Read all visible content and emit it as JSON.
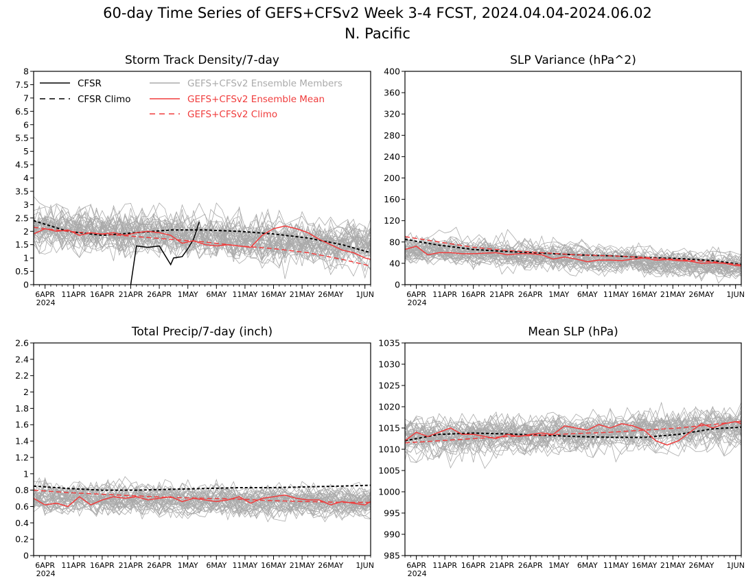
{
  "figure": {
    "title_line1": "60-day Time Series of GEFS+CFSv2 Week 3-4 FCST, 2024.04.04-2024.06.02",
    "title_line2": "N. Pacific"
  },
  "colors": {
    "cfsr": "#000000",
    "ensemble_members": "#aaaaaa",
    "ensemble_mean": "#f03c3c",
    "axes": "#000000"
  },
  "legend": {
    "placement": "top-left of panel 1",
    "items": [
      {
        "label": "CFSR",
        "style": "solid",
        "color": "#000000"
      },
      {
        "label": "CFSR Climo",
        "style": "dashed",
        "color": "#000000"
      },
      {
        "label": "GEFS+CFSv2 Ensemble Members",
        "style": "solid",
        "color": "#aaaaaa"
      },
      {
        "label": "GEFS+CFSv2 Ensemble Mean",
        "style": "solid",
        "color": "#f03c3c"
      },
      {
        "label": "GEFS+CFSv2 Climo",
        "style": "dashed",
        "color": "#f03c3c"
      }
    ]
  },
  "x_axis": {
    "day_range": [
      4,
      63
    ],
    "tick_days": [
      6,
      11,
      16,
      21,
      26,
      31,
      36,
      41,
      46,
      51,
      56,
      62
    ],
    "tick_labels": [
      "6APR",
      "11APR",
      "16APR",
      "21APR",
      "26APR",
      "1MAY",
      "6MAY",
      "11MAY",
      "16MAY",
      "21MAY",
      "26MAY",
      "1JUN"
    ],
    "year_label": "2024"
  },
  "chart_data": [
    {
      "type": "line",
      "title": "Storm Track Density/7-day",
      "ylim": [
        0,
        8
      ],
      "yticks": [
        0,
        0.5,
        1,
        1.5,
        2,
        2.5,
        3,
        3.5,
        4,
        4.5,
        5,
        5.5,
        6,
        6.5,
        7,
        7.5,
        8
      ],
      "ytick_labels": [
        "0",
        "0.5",
        "1",
        "1.5",
        "2",
        "2.5",
        "3",
        "3.5",
        "4",
        "4.5",
        "5",
        "5.5",
        "6",
        "6.5",
        "7",
        "7.5",
        "8"
      ],
      "members": {
        "count": 40,
        "center_start": 2.1,
        "center_end": 1.4,
        "spread": 1.0
      },
      "series": [
        {
          "name": "CFSR",
          "x": [
            21,
            22,
            24,
            26,
            27,
            28,
            28.5,
            30,
            31,
            32,
            33
          ],
          "values": [
            0,
            1.45,
            1.4,
            1.45,
            1.1,
            0.75,
            1.0,
            1.05,
            1.35,
            1.7,
            2.35
          ]
        },
        {
          "name": "CFSR Climo",
          "x": [
            4,
            10,
            16,
            22,
            28,
            34,
            40,
            46,
            52,
            58,
            63
          ],
          "values": [
            2.4,
            2.0,
            1.85,
            1.95,
            2.05,
            2.05,
            2.0,
            1.9,
            1.75,
            1.5,
            1.2
          ]
        },
        {
          "name": "GEFS+CFSv2 Ensemble Mean",
          "x": [
            4,
            6,
            8,
            10,
            12,
            14,
            16,
            18,
            20,
            22,
            24,
            26,
            28,
            30,
            32,
            34,
            36,
            38,
            40,
            42,
            44,
            46,
            48,
            50,
            52,
            54,
            56,
            58,
            60,
            62,
            63
          ],
          "values": [
            1.9,
            2.1,
            2.0,
            2.05,
            1.85,
            1.95,
            1.9,
            1.95,
            1.85,
            1.95,
            2.0,
            1.95,
            1.85,
            1.55,
            1.65,
            1.5,
            1.45,
            1.5,
            1.45,
            1.4,
            1.85,
            2.1,
            2.2,
            2.1,
            1.95,
            1.7,
            1.5,
            1.3,
            1.2,
            1.0,
            0.95
          ]
        },
        {
          "name": "GEFS+CFSv2 Climo",
          "x": [
            4,
            10,
            16,
            22,
            28,
            34,
            40,
            46,
            52,
            58,
            63
          ],
          "values": [
            2.15,
            2.0,
            1.9,
            1.8,
            1.7,
            1.6,
            1.45,
            1.35,
            1.2,
            0.95,
            0.7
          ]
        }
      ]
    },
    {
      "type": "line",
      "title": "SLP Variance (hPa^2)",
      "ylim": [
        0,
        400
      ],
      "yticks": [
        0,
        40,
        80,
        120,
        160,
        200,
        240,
        280,
        320,
        360,
        400
      ],
      "ytick_labels": [
        "0",
        "40",
        "80",
        "120",
        "160",
        "200",
        "240",
        "280",
        "320",
        "360",
        "400"
      ],
      "members": {
        "count": 40,
        "center_start": 68,
        "center_end": 35,
        "spread": 28
      },
      "series": [
        {
          "name": "CFSR Climo",
          "x": [
            4,
            10,
            16,
            22,
            28,
            34,
            40,
            46,
            52,
            58,
            63
          ],
          "values": [
            85,
            74,
            66,
            62,
            59,
            56,
            54,
            51,
            49,
            45,
            38
          ]
        },
        {
          "name": "GEFS+CFSv2 Ensemble Mean",
          "x": [
            4,
            6,
            8,
            10,
            12,
            14,
            16,
            18,
            20,
            22,
            24,
            26,
            28,
            30,
            32,
            34,
            36,
            38,
            40,
            42,
            44,
            46,
            48,
            50,
            52,
            54,
            56,
            58,
            60,
            62,
            63
          ],
          "values": [
            66,
            72,
            56,
            60,
            60,
            58,
            58,
            59,
            60,
            56,
            58,
            58,
            56,
            48,
            52,
            48,
            43,
            46,
            46,
            45,
            48,
            50,
            46,
            47,
            45,
            44,
            40,
            41,
            40,
            36,
            35
          ]
        },
        {
          "name": "GEFS+CFSv2 Climo",
          "x": [
            4,
            10,
            16,
            22,
            28,
            34,
            40,
            46,
            52,
            58,
            63
          ],
          "values": [
            90,
            80,
            70,
            64,
            60,
            56,
            54,
            51,
            47,
            43,
            37
          ]
        }
      ]
    },
    {
      "type": "line",
      "title": "Total Precip/7-day (inch)",
      "ylim": [
        0,
        2.6
      ],
      "yticks": [
        0,
        0.2,
        0.4,
        0.6,
        0.8,
        1,
        1.2,
        1.4,
        1.6,
        1.8,
        2,
        2.2,
        2.4,
        2.6
      ],
      "ytick_labels": [
        "0",
        "0.2",
        "0.4",
        "0.6",
        "0.8",
        "1",
        "1.2",
        "1.4",
        "1.6",
        "1.8",
        "2",
        "2.2",
        "2.4",
        "2.6"
      ],
      "members": {
        "count": 40,
        "center_start": 0.7,
        "center_end": 0.65,
        "spread": 0.22
      },
      "series": [
        {
          "name": "CFSR Climo",
          "x": [
            4,
            10,
            16,
            22,
            28,
            34,
            40,
            46,
            52,
            58,
            63
          ],
          "values": [
            0.85,
            0.82,
            0.8,
            0.8,
            0.81,
            0.82,
            0.83,
            0.83,
            0.84,
            0.85,
            0.86
          ]
        },
        {
          "name": "GEFS+CFSv2 Ensemble Mean",
          "x": [
            4,
            6,
            8,
            10,
            12,
            14,
            16,
            18,
            20,
            22,
            24,
            26,
            28,
            30,
            32,
            34,
            36,
            38,
            40,
            42,
            44,
            46,
            48,
            50,
            52,
            54,
            56,
            58,
            60,
            62,
            63
          ],
          "values": [
            0.7,
            0.62,
            0.64,
            0.6,
            0.72,
            0.62,
            0.68,
            0.72,
            0.7,
            0.72,
            0.68,
            0.7,
            0.72,
            0.66,
            0.7,
            0.68,
            0.66,
            0.68,
            0.72,
            0.64,
            0.7,
            0.72,
            0.74,
            0.7,
            0.68,
            0.68,
            0.62,
            0.66,
            0.64,
            0.62,
            0.66
          ]
        },
        {
          "name": "GEFS+CFSv2 Climo",
          "x": [
            4,
            10,
            16,
            22,
            28,
            34,
            40,
            46,
            52,
            58,
            63
          ],
          "values": [
            0.8,
            0.77,
            0.75,
            0.73,
            0.71,
            0.7,
            0.69,
            0.67,
            0.66,
            0.65,
            0.65
          ]
        }
      ]
    },
    {
      "type": "line",
      "title": "Mean SLP (hPa)",
      "ylim": [
        985,
        1035
      ],
      "yticks": [
        985,
        990,
        995,
        1000,
        1005,
        1010,
        1015,
        1020,
        1025,
        1030,
        1035
      ],
      "ytick_labels": [
        "985",
        "990",
        "995",
        "1000",
        "1005",
        "1010",
        "1015",
        "1020",
        "1025",
        "1030",
        "1035"
      ],
      "members": {
        "count": 40,
        "center_start": 1013,
        "center_end": 1015.5,
        "spread": 5
      },
      "series": [
        {
          "name": "CFSR Climo",
          "x": [
            4,
            10,
            16,
            22,
            28,
            34,
            40,
            46,
            52,
            58,
            63
          ],
          "values": [
            1012,
            1013.5,
            1013.8,
            1013.6,
            1013.3,
            1013,
            1012.8,
            1012.8,
            1013.5,
            1014.8,
            1015.2
          ]
        },
        {
          "name": "GEFS+CFSv2 Ensemble Mean",
          "x": [
            4,
            6,
            8,
            10,
            12,
            14,
            16,
            18,
            20,
            22,
            24,
            26,
            28,
            30,
            32,
            34,
            36,
            38,
            40,
            42,
            44,
            46,
            48,
            50,
            52,
            54,
            56,
            58,
            60,
            62,
            63
          ],
          "values": [
            1012,
            1014,
            1013,
            1014,
            1015,
            1013.5,
            1013.5,
            1013,
            1012.5,
            1013.5,
            1013,
            1013.5,
            1013.8,
            1013.5,
            1015.5,
            1015,
            1014.5,
            1015.8,
            1015,
            1016,
            1015.5,
            1014.5,
            1012,
            1011,
            1012,
            1014,
            1016,
            1015,
            1016,
            1016.5,
            1016
          ]
        },
        {
          "name": "GEFS+CFSv2 Climo",
          "x": [
            4,
            10,
            16,
            22,
            28,
            34,
            40,
            46,
            52,
            58,
            63
          ],
          "values": [
            1011.5,
            1012,
            1012.5,
            1013,
            1013.3,
            1013.7,
            1014,
            1014.5,
            1015,
            1015.8,
            1016.6
          ]
        }
      ]
    }
  ]
}
